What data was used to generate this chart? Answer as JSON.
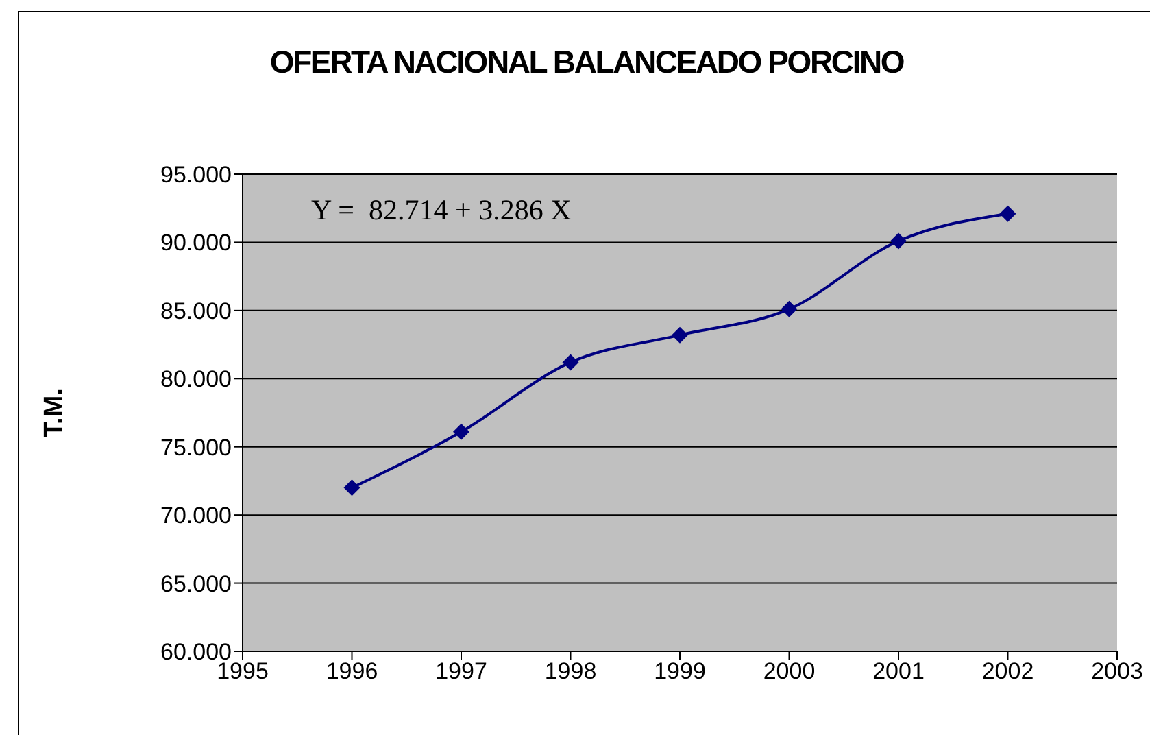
{
  "chart_data": {
    "type": "line",
    "title": "OFERTA NACIONAL BALANCEADO PORCINO",
    "ylabel": "T.M.",
    "annotations": [
      "Y =  82.714 + 3.286 X"
    ],
    "x": [
      1996,
      1997,
      1998,
      1999,
      2000,
      2001,
      2002
    ],
    "series": [
      {
        "color": "#000080",
        "values": [
          72000,
          76100,
          81200,
          83200,
          85100,
          90100,
          92100
        ]
      }
    ],
    "xlim": [
      1995,
      2003
    ],
    "xticks": [
      1995,
      1996,
      1997,
      1998,
      1999,
      2000,
      2001,
      2002,
      2003
    ],
    "ylim": [
      60000,
      95000
    ],
    "yticks": [
      {
        "value": 60000,
        "label": "60.000"
      },
      {
        "value": 65000,
        "label": "65.000"
      },
      {
        "value": 70000,
        "label": "70.000"
      },
      {
        "value": 75000,
        "label": "75.000"
      },
      {
        "value": 80000,
        "label": "80.000"
      },
      {
        "value": 85000,
        "label": "85.000"
      },
      {
        "value": 90000,
        "label": "90.000"
      },
      {
        "value": 95000,
        "label": "95.000"
      }
    ],
    "grid": "y",
    "legend": false,
    "marker": "diamond",
    "line_style": "solid"
  }
}
